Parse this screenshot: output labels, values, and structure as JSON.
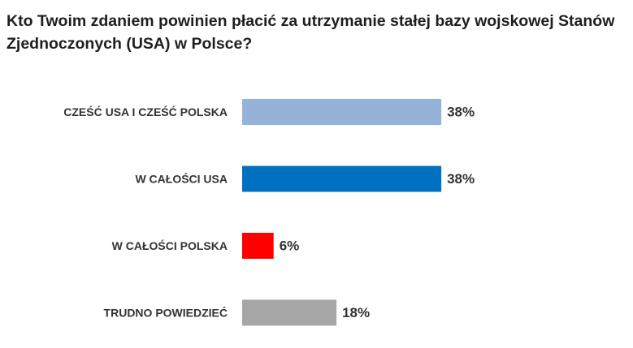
{
  "chart_data": {
    "type": "bar",
    "orientation": "horizontal",
    "title": "Kto Twoim zdaniem powinien płacić za utrzymanie stałej bazy wojskowej Stanów Zjednoczonych (USA) w Polsce?",
    "categories": [
      "CZEŚĆ USA I CZEŚĆ POLSKA",
      "W CAŁOŚCI USA",
      "W CAŁOŚCI POLSKA",
      "TRUDNO POWIEDZIEĆ"
    ],
    "values": [
      38,
      38,
      6,
      18
    ],
    "value_labels": [
      "38%",
      "38%",
      "6%",
      "18%"
    ],
    "colors": [
      "#95b3d7",
      "#0070c0",
      "#ff0000",
      "#a6a6a6"
    ],
    "xlim": [
      0,
      100
    ],
    "grid": false,
    "legend": "none"
  }
}
